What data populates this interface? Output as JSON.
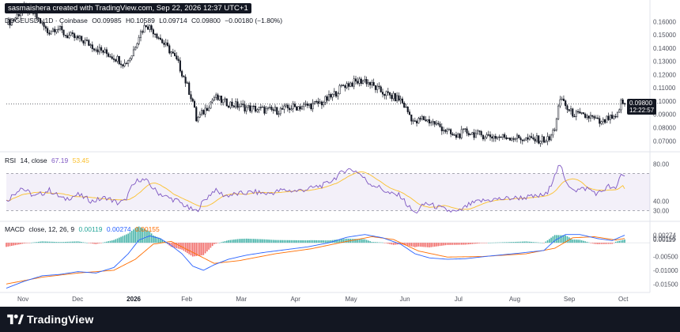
{
  "header": {
    "credit": "sasmaishera created with TradingView.com, Sep 22, 2026 12:37 UTC+1"
  },
  "symbol": {
    "name": "DOGEUSD · 1D · Coinbase",
    "open": "O0.09985",
    "high": "H0.10589",
    "low": "L0.09714",
    "close": "C0.09800",
    "change": "−0.00180 (−1.80%)"
  },
  "price_labels": {
    "last": "0.09800",
    "countdown": "12:22:57"
  },
  "rsi_header": {
    "name": "RSI",
    "params": "14, close",
    "rsi_val": "67.19",
    "ma_val": "53.45"
  },
  "macd_header": {
    "name": "MACD",
    "params": "close, 12, 26, 9",
    "hist": "0.00119",
    "macd": "0.00274",
    "signal": "0.00155"
  },
  "footer": {
    "brand": "TradingView"
  },
  "colors": {
    "up": "#131722",
    "down": "#131722",
    "rsi": "#7e57c2",
    "rsi_ma": "#fbc02d",
    "macd": "#2962ff",
    "signal": "#ff6d00",
    "hist_up": "#26a69a",
    "hist_down": "#ef5350"
  },
  "chart_data": [
    {
      "type": "candlestick",
      "x_ticks": [
        "Nov",
        "Dec",
        "2026",
        "Feb",
        "Mar",
        "Apr",
        "May",
        "Jun",
        "Jul",
        "Aug",
        "Sep",
        "Oct"
      ],
      "y_ticks": [
        "0.16000",
        "0.15000",
        "0.14000",
        "0.13000",
        "0.12000",
        "0.11000",
        "0.10000",
        "0.09000",
        "0.08000",
        "0.07000"
      ],
      "ylim": [
        0.063,
        0.168
      ],
      "close_path": [
        {
          "d": 0,
          "c": 0.158
        },
        {
          "d": 5,
          "c": 0.163
        },
        {
          "d": 9,
          "c": 0.17
        },
        {
          "d": 14,
          "c": 0.168
        },
        {
          "d": 19,
          "c": 0.16
        },
        {
          "d": 23,
          "c": 0.152
        },
        {
          "d": 28,
          "c": 0.156
        },
        {
          "d": 33,
          "c": 0.15
        },
        {
          "d": 38,
          "c": 0.148
        },
        {
          "d": 44,
          "c": 0.145
        },
        {
          "d": 50,
          "c": 0.14
        },
        {
          "d": 56,
          "c": 0.136
        },
        {
          "d": 62,
          "c": 0.132
        },
        {
          "d": 66,
          "c": 0.128
        },
        {
          "d": 70,
          "c": 0.135
        },
        {
          "d": 74,
          "c": 0.15
        },
        {
          "d": 78,
          "c": 0.158
        },
        {
          "d": 83,
          "c": 0.152
        },
        {
          "d": 88,
          "c": 0.143
        },
        {
          "d": 92,
          "c": 0.137
        },
        {
          "d": 96,
          "c": 0.128
        },
        {
          "d": 100,
          "c": 0.115
        },
        {
          "d": 104,
          "c": 0.1
        },
        {
          "d": 106,
          "c": 0.086
        },
        {
          "d": 110,
          "c": 0.092
        },
        {
          "d": 116,
          "c": 0.103
        },
        {
          "d": 122,
          "c": 0.099
        },
        {
          "d": 128,
          "c": 0.097
        },
        {
          "d": 134,
          "c": 0.095
        },
        {
          "d": 140,
          "c": 0.094
        },
        {
          "d": 146,
          "c": 0.093
        },
        {
          "d": 152,
          "c": 0.093
        },
        {
          "d": 158,
          "c": 0.095
        },
        {
          "d": 164,
          "c": 0.096
        },
        {
          "d": 170,
          "c": 0.097
        },
        {
          "d": 176,
          "c": 0.099
        },
        {
          "d": 182,
          "c": 0.104
        },
        {
          "d": 188,
          "c": 0.112
        },
        {
          "d": 194,
          "c": 0.114
        },
        {
          "d": 200,
          "c": 0.116
        },
        {
          "d": 204,
          "c": 0.112
        },
        {
          "d": 208,
          "c": 0.108
        },
        {
          "d": 214,
          "c": 0.104
        },
        {
          "d": 220,
          "c": 0.101
        },
        {
          "d": 224,
          "c": 0.092
        },
        {
          "d": 228,
          "c": 0.083
        },
        {
          "d": 232,
          "c": 0.087
        },
        {
          "d": 238,
          "c": 0.084
        },
        {
          "d": 244,
          "c": 0.079
        },
        {
          "d": 250,
          "c": 0.073
        },
        {
          "d": 256,
          "c": 0.077
        },
        {
          "d": 262,
          "c": 0.075
        },
        {
          "d": 268,
          "c": 0.074
        },
        {
          "d": 274,
          "c": 0.073
        },
        {
          "d": 280,
          "c": 0.073
        },
        {
          "d": 286,
          "c": 0.072
        },
        {
          "d": 292,
          "c": 0.071
        },
        {
          "d": 298,
          "c": 0.071
        },
        {
          "d": 303,
          "c": 0.071
        },
        {
          "d": 306,
          "c": 0.08
        },
        {
          "d": 308,
          "c": 0.095
        },
        {
          "d": 310,
          "c": 0.102
        },
        {
          "d": 314,
          "c": 0.092
        },
        {
          "d": 320,
          "c": 0.089
        },
        {
          "d": 326,
          "c": 0.088
        },
        {
          "d": 332,
          "c": 0.083
        },
        {
          "d": 336,
          "c": 0.087
        },
        {
          "d": 340,
          "c": 0.086
        },
        {
          "d": 343,
          "c": 0.099
        },
        {
          "d": 345,
          "c": 0.098
        }
      ],
      "last_price": 0.098
    },
    {
      "type": "line",
      "name": "RSI",
      "y_ticks": [
        "80.00",
        "40.00",
        "30.00"
      ],
      "ylim": [
        20,
        90
      ],
      "bands": [
        30,
        70
      ],
      "rsi_path": [
        {
          "d": 0,
          "v": 40
        },
        {
          "d": 8,
          "v": 55
        },
        {
          "d": 16,
          "v": 45
        },
        {
          "d": 24,
          "v": 52
        },
        {
          "d": 32,
          "v": 42
        },
        {
          "d": 40,
          "v": 47
        },
        {
          "d": 48,
          "v": 40
        },
        {
          "d": 56,
          "v": 44
        },
        {
          "d": 62,
          "v": 38
        },
        {
          "d": 66,
          "v": 40
        },
        {
          "d": 70,
          "v": 55
        },
        {
          "d": 74,
          "v": 64
        },
        {
          "d": 78,
          "v": 62
        },
        {
          "d": 84,
          "v": 50
        },
        {
          "d": 90,
          "v": 44
        },
        {
          "d": 96,
          "v": 40
        },
        {
          "d": 102,
          "v": 32
        },
        {
          "d": 106,
          "v": 29
        },
        {
          "d": 110,
          "v": 40
        },
        {
          "d": 116,
          "v": 52
        },
        {
          "d": 122,
          "v": 46
        },
        {
          "d": 130,
          "v": 48
        },
        {
          "d": 138,
          "v": 50
        },
        {
          "d": 146,
          "v": 48
        },
        {
          "d": 154,
          "v": 52
        },
        {
          "d": 162,
          "v": 51
        },
        {
          "d": 170,
          "v": 54
        },
        {
          "d": 178,
          "v": 58
        },
        {
          "d": 184,
          "v": 66
        },
        {
          "d": 190,
          "v": 75
        },
        {
          "d": 196,
          "v": 72
        },
        {
          "d": 202,
          "v": 60
        },
        {
          "d": 208,
          "v": 55
        },
        {
          "d": 214,
          "v": 48
        },
        {
          "d": 220,
          "v": 46
        },
        {
          "d": 224,
          "v": 35
        },
        {
          "d": 228,
          "v": 27
        },
        {
          "d": 234,
          "v": 38
        },
        {
          "d": 240,
          "v": 34
        },
        {
          "d": 246,
          "v": 30
        },
        {
          "d": 252,
          "v": 28
        },
        {
          "d": 258,
          "v": 36
        },
        {
          "d": 264,
          "v": 40
        },
        {
          "d": 272,
          "v": 42
        },
        {
          "d": 280,
          "v": 43
        },
        {
          "d": 288,
          "v": 44
        },
        {
          "d": 296,
          "v": 45
        },
        {
          "d": 302,
          "v": 48
        },
        {
          "d": 306,
          "v": 70
        },
        {
          "d": 309,
          "v": 80
        },
        {
          "d": 312,
          "v": 60
        },
        {
          "d": 318,
          "v": 52
        },
        {
          "d": 324,
          "v": 54
        },
        {
          "d": 330,
          "v": 48
        },
        {
          "d": 336,
          "v": 56
        },
        {
          "d": 340,
          "v": 52
        },
        {
          "d": 343,
          "v": 70
        },
        {
          "d": 345,
          "v": 67.19
        }
      ],
      "ma_last": 53.45
    },
    {
      "type": "line",
      "name": "MACD",
      "y_ticks": [
        "0.00274",
        "0.00155",
        "0.00119",
        "-0.00500",
        "-0.01000",
        "-0.01500"
      ],
      "ylim": [
        -0.0175,
        0.0075
      ],
      "macd_path": [
        {
          "d": 0,
          "v": -0.0165
        },
        {
          "d": 10,
          "v": -0.014
        },
        {
          "d": 20,
          "v": -0.012
        },
        {
          "d": 30,
          "v": -0.0115
        },
        {
          "d": 40,
          "v": -0.0105
        },
        {
          "d": 50,
          "v": -0.011
        },
        {
          "d": 60,
          "v": -0.009
        },
        {
          "d": 68,
          "v": -0.004
        },
        {
          "d": 74,
          "v": 0.001
        },
        {
          "d": 80,
          "v": 0.0025
        },
        {
          "d": 86,
          "v": 0.0015
        },
        {
          "d": 92,
          "v": -0.001
        },
        {
          "d": 98,
          "v": -0.004
        },
        {
          "d": 104,
          "v": -0.0085
        },
        {
          "d": 110,
          "v": -0.01
        },
        {
          "d": 116,
          "v": -0.008
        },
        {
          "d": 124,
          "v": -0.006
        },
        {
          "d": 134,
          "v": -0.0045
        },
        {
          "d": 144,
          "v": -0.0035
        },
        {
          "d": 156,
          "v": -0.0025
        },
        {
          "d": 168,
          "v": -0.0015
        },
        {
          "d": 180,
          "v": 0.0
        },
        {
          "d": 190,
          "v": 0.002
        },
        {
          "d": 200,
          "v": 0.003
        },
        {
          "d": 210,
          "v": 0.0018
        },
        {
          "d": 220,
          "v": -0.0005
        },
        {
          "d": 228,
          "v": -0.004
        },
        {
          "d": 236,
          "v": -0.0055
        },
        {
          "d": 246,
          "v": -0.006
        },
        {
          "d": 256,
          "v": -0.0058
        },
        {
          "d": 270,
          "v": -0.0048
        },
        {
          "d": 286,
          "v": -0.0038
        },
        {
          "d": 300,
          "v": -0.0028
        },
        {
          "d": 306,
          "v": 0.0008
        },
        {
          "d": 312,
          "v": 0.003
        },
        {
          "d": 320,
          "v": 0.003
        },
        {
          "d": 330,
          "v": 0.0015
        },
        {
          "d": 338,
          "v": 0.0008
        },
        {
          "d": 345,
          "v": 0.00274
        }
      ],
      "signal_path": [
        {
          "d": 0,
          "v": -0.015
        },
        {
          "d": 20,
          "v": -0.0125
        },
        {
          "d": 40,
          "v": -0.011
        },
        {
          "d": 60,
          "v": -0.01
        },
        {
          "d": 72,
          "v": -0.006
        },
        {
          "d": 82,
          "v": -0.0005
        },
        {
          "d": 92,
          "v": 0.0005
        },
        {
          "d": 104,
          "v": -0.0035
        },
        {
          "d": 116,
          "v": -0.0075
        },
        {
          "d": 130,
          "v": -0.0065
        },
        {
          "d": 150,
          "v": -0.004
        },
        {
          "d": 170,
          "v": -0.0022
        },
        {
          "d": 190,
          "v": 0.0005
        },
        {
          "d": 204,
          "v": 0.0022
        },
        {
          "d": 216,
          "v": 0.0012
        },
        {
          "d": 230,
          "v": -0.003
        },
        {
          "d": 246,
          "v": -0.0052
        },
        {
          "d": 266,
          "v": -0.005
        },
        {
          "d": 290,
          "v": -0.004
        },
        {
          "d": 306,
          "v": -0.002
        },
        {
          "d": 316,
          "v": 0.0018
        },
        {
          "d": 328,
          "v": 0.0022
        },
        {
          "d": 340,
          "v": 0.001
        },
        {
          "d": 345,
          "v": 0.00155
        }
      ]
    }
  ]
}
